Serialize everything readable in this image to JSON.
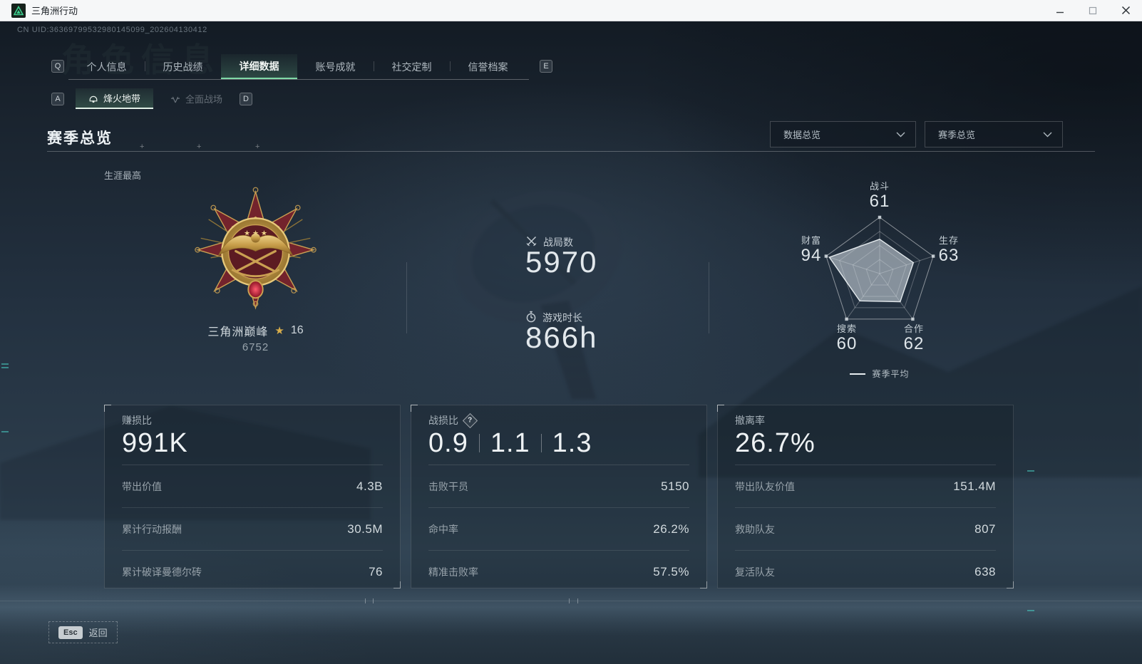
{
  "window": {
    "title": "三角洲行动",
    "uid": "CN UID:36369799532980145099_202604130412",
    "controls": {
      "minimize": "minimize-icon",
      "maximize": "maximize-icon",
      "close": "close-icon"
    }
  },
  "watermark": "角色信息",
  "nav": {
    "key_left": "Q",
    "key_right": "E",
    "tabs": [
      {
        "label": "个人信息",
        "active": false
      },
      {
        "label": "历史战绩",
        "active": false
      },
      {
        "label": "详细数据",
        "active": true
      },
      {
        "label": "账号成就",
        "active": false
      },
      {
        "label": "社交定制",
        "active": false
      },
      {
        "label": "信誉档案",
        "active": false
      }
    ]
  },
  "subnav": {
    "key_left": "A",
    "key_right": "D",
    "tabs": [
      {
        "label": "烽火地带",
        "active": true,
        "icon": "helmet-icon"
      },
      {
        "label": "全面战场",
        "active": false,
        "icon": "assault-wings-icon"
      }
    ]
  },
  "section": {
    "title": "赛季总览",
    "dropdown_data": "数据总览",
    "dropdown_season": "赛季总览"
  },
  "career": {
    "label": "生涯最高",
    "rank_name": "三角洲巅峰",
    "rank_star_icon": "★",
    "rank_level": "16",
    "rank_score": "6752"
  },
  "overview": {
    "battles_label": "战局数",
    "battles_icon": "crossed-swords-icon",
    "battles_value": "5970",
    "playtime_label": "游戏时长",
    "playtime_icon": "stopwatch-icon",
    "playtime_value": "866h"
  },
  "chart_data": {
    "type": "radar",
    "categories": [
      "战斗",
      "生存",
      "合作",
      "搜索",
      "财富"
    ],
    "values": [
      61,
      63,
      62,
      60,
      94
    ],
    "max": 100,
    "grid_levels": 4,
    "legend": "赛季平均",
    "legend_position": "bottom"
  },
  "cards": [
    {
      "title": "赚损比",
      "value": "991K",
      "rows": [
        {
          "label": "带出价值",
          "value": "4.3B"
        },
        {
          "label": "累计行动报酬",
          "value": "30.5M"
        },
        {
          "label": "累计破译曼德尔砖",
          "value": "76"
        }
      ]
    },
    {
      "title": "战损比",
      "help": "?",
      "value_parts": [
        "0.9",
        "1.1",
        "1.3"
      ],
      "rows": [
        {
          "label": "击败干员",
          "value": "5150"
        },
        {
          "label": "命中率",
          "value": "26.2%"
        },
        {
          "label": "精准击败率",
          "value": "57.5%"
        }
      ]
    },
    {
      "title": "撤离率",
      "value": "26.7%",
      "rows": [
        {
          "label": "带出队友价值",
          "value": "151.4M"
        },
        {
          "label": "救助队友",
          "value": "807"
        },
        {
          "label": "复活队友",
          "value": "638"
        }
      ]
    }
  ],
  "footer": {
    "key": "Esc",
    "label": "返回"
  },
  "colors": {
    "accent_green": "#7fd9a6",
    "teal": "#3fd0c9",
    "gold": "#d9ae4b",
    "titlebar_bg": "#f6f7f8",
    "screen_base": "#233140"
  }
}
